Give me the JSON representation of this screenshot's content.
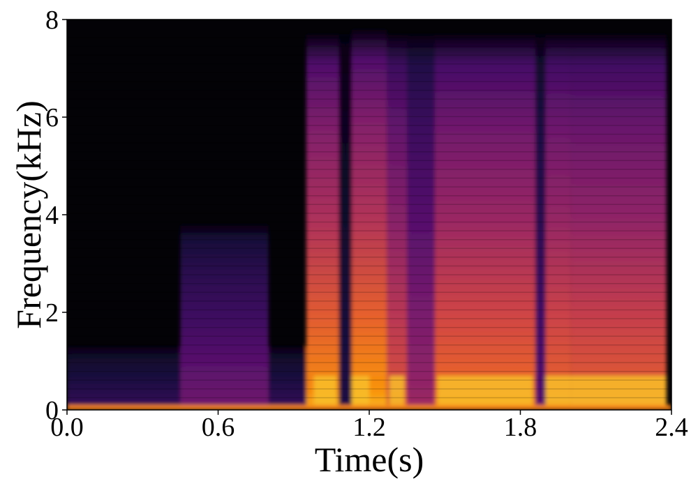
{
  "chart_data": {
    "type": "heatmap",
    "title": "",
    "xlabel": "Time(s)",
    "ylabel": "Frequency(kHz)",
    "xlim": [
      0.0,
      2.4
    ],
    "ylim": [
      0,
      8
    ],
    "xticks": [
      0.0,
      0.6,
      1.2,
      1.8,
      2.4
    ],
    "xtick_labels": [
      "0.0",
      "0.6",
      "1.2",
      "1.8",
      "2.4"
    ],
    "yticks": [
      0,
      2,
      4,
      6,
      8
    ],
    "ytick_labels": [
      "0",
      "2",
      "4",
      "6",
      "8"
    ],
    "colormap": "inferno",
    "colormap_stops": [
      "#000004",
      "#1b0c41",
      "#4a0c6b",
      "#781c6d",
      "#a52c60",
      "#cf4446",
      "#ed6925",
      "#fb9b06",
      "#f7d13d",
      "#fcffa4"
    ],
    "grid": false,
    "background_color": "#030206",
    "energy_segments": [
      {
        "t0": 0.0,
        "t1": 0.95,
        "fmax": 0.25,
        "level": 0.75
      },
      {
        "t0": 0.0,
        "t1": 0.95,
        "fmax": 1.3,
        "level": 0.18
      },
      {
        "t0": 0.45,
        "t1": 0.8,
        "fmax": 3.8,
        "level": 0.32
      },
      {
        "t0": 0.95,
        "t1": 1.08,
        "fmax": 7.7,
        "level": 0.78
      },
      {
        "t0": 1.08,
        "t1": 1.13,
        "fmax": 7.7,
        "level": 0.12
      },
      {
        "t0": 1.13,
        "t1": 1.27,
        "fmax": 7.8,
        "level": 0.8
      },
      {
        "t0": 1.27,
        "t1": 1.35,
        "fmax": 7.7,
        "level": 0.62
      },
      {
        "t0": 1.35,
        "t1": 1.46,
        "fmax": 7.7,
        "level": 0.42
      },
      {
        "t0": 1.46,
        "t1": 1.86,
        "fmax": 7.7,
        "level": 0.7
      },
      {
        "t0": 1.86,
        "t1": 1.9,
        "fmax": 7.7,
        "level": 0.25
      },
      {
        "t0": 1.9,
        "t1": 2.0,
        "fmax": 7.7,
        "level": 0.68
      },
      {
        "t0": 2.0,
        "t1": 2.38,
        "fmax": 7.7,
        "level": 0.66
      }
    ]
  }
}
